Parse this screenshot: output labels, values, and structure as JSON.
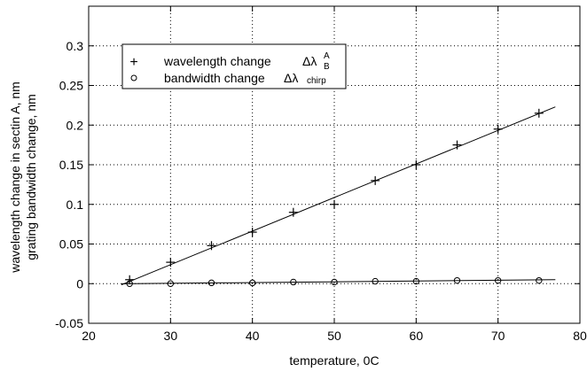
{
  "chart_data": {
    "type": "scatter",
    "title": "",
    "xlabel": "temperature, 0C",
    "ylabel": [
      "wavelength change in sectin A, nm",
      "grating bandwidth change, nm"
    ],
    "xlim": [
      20,
      80
    ],
    "ylim": [
      -0.05,
      0.35
    ],
    "xticks": [
      20,
      30,
      40,
      50,
      60,
      70,
      80
    ],
    "yticks": [
      -0.05,
      0,
      0.05,
      0.1,
      0.15,
      0.2,
      0.25,
      0.3
    ],
    "xtick_labels": [
      "20",
      "30",
      "40",
      "50",
      "60",
      "70",
      "80"
    ],
    "ytick_labels": [
      "-0.05",
      "0",
      "0.05",
      "0.1",
      "0.15",
      "0.2",
      "0.25",
      "0.3"
    ],
    "grid": "dotted",
    "legend_position": "upper-left",
    "series": [
      {
        "label_main": "wavelength change",
        "label_symbol": "Δλ",
        "label_super": "A",
        "label_sub": "B",
        "marker": "+",
        "x": [
          25,
          30,
          35,
          40,
          45,
          50,
          55,
          60,
          65,
          70,
          75
        ],
        "y": [
          0.005,
          0.027,
          0.048,
          0.065,
          0.09,
          0.1,
          0.13,
          0.15,
          0.175,
          0.195,
          0.215
        ],
        "fit": {
          "x": [
            24,
            77
          ],
          "y": [
            -0.0015,
            0.223
          ]
        }
      },
      {
        "label_main": "bandwidth change",
        "label_symbol": "Δλ",
        "label_sub": "chirp",
        "marker": "o",
        "x": [
          25,
          30,
          35,
          40,
          45,
          50,
          55,
          60,
          65,
          70,
          75
        ],
        "y": [
          0.0,
          0.0,
          0.001,
          0.001,
          0.002,
          0.002,
          0.003,
          0.003,
          0.004,
          0.004,
          0.004
        ],
        "fit": {
          "x": [
            24,
            77
          ],
          "y": [
            -0.0002,
            0.005
          ]
        }
      }
    ]
  }
}
